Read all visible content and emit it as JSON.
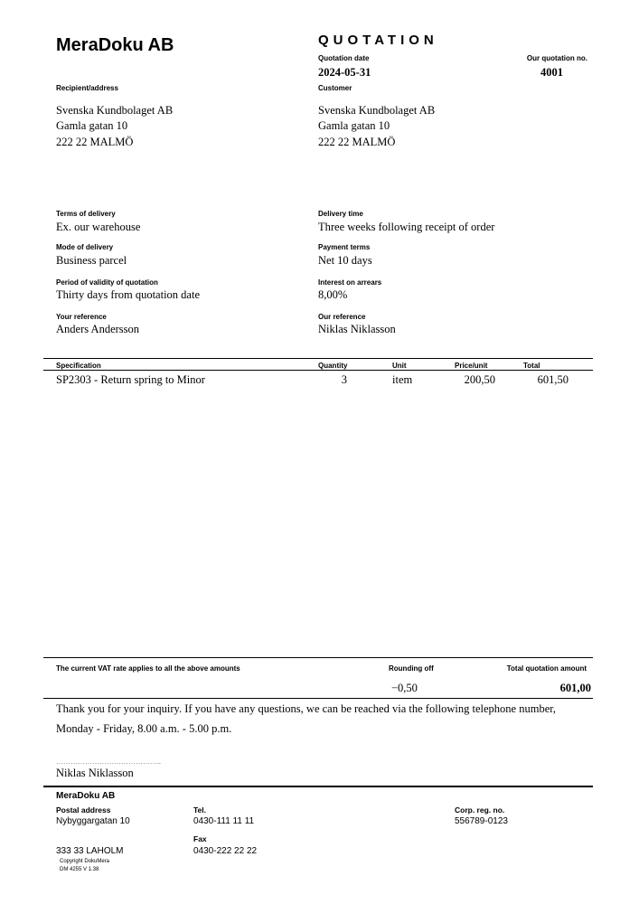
{
  "company": "MeraDoku AB",
  "doc_title": "QUOTATION",
  "quotation_date": {
    "label": "Quotation date",
    "value": "2024-05-31"
  },
  "quotation_no": {
    "label": "Our quotation no.",
    "value": "4001"
  },
  "recipient": {
    "label": "Recipient/address",
    "lines": [
      "Svenska Kundbolaget AB",
      "Gamla gatan 10",
      "222 22 MALMÖ"
    ]
  },
  "customer": {
    "label": "Customer",
    "lines": [
      "Svenska Kundbolaget AB",
      "Gamla gatan 10",
      "222 22 MALMÖ"
    ]
  },
  "terms": [
    {
      "label": "Terms of delivery",
      "value": "Ex. our warehouse"
    },
    {
      "label": "Delivery time",
      "value": "Three weeks following receipt of order"
    },
    {
      "label": "Mode of delivery",
      "value": "Business parcel"
    },
    {
      "label": "Payment terms",
      "value": "Net 10 days"
    },
    {
      "label": "Period of validity of quotation",
      "value": "Thirty days from quotation date"
    },
    {
      "label": "Interest on arrears",
      "value": "8,00%"
    },
    {
      "label": "Your reference",
      "value": "Anders Andersson"
    },
    {
      "label": "Our reference",
      "value": "Niklas Niklasson"
    }
  ],
  "table": {
    "headers": [
      "Specification",
      "Quantity",
      "Unit",
      "Price/unit",
      "Total"
    ],
    "rows": [
      [
        "SP2303 - Return spring to Minor",
        "3",
        "item",
        "200,50",
        "601,50"
      ]
    ]
  },
  "summary": {
    "vat_note": "The current VAT rate applies to all the above amounts",
    "rounding_label": "Rounding off",
    "rounding_value": "−0,50",
    "total_label": "Total quotation amount",
    "total_value": "601,00"
  },
  "message": [
    "Thank you for your inquiry. If you have any questions, we can be reached via the following telephone number,",
    "Monday - Friday, 8.00 a.m. - 5.00 p.m."
  ],
  "signature": {
    "dots": "……………………………………..",
    "name": "Niklas Niklasson"
  },
  "footer": {
    "company": "MeraDoku AB",
    "postal_label": "Postal address",
    "street": "Nybyggargatan 10",
    "city": "333 33 LAHOLM",
    "tel_label": "Tel.",
    "tel": "0430-111 11 11",
    "fax_label": "Fax",
    "fax": "0430-222 22 22",
    "reg_label": "Corp. reg. no.",
    "reg": "556789-0123",
    "copyright": "Copyright DokuMera",
    "version": "DM 4255  V 1.38"
  }
}
